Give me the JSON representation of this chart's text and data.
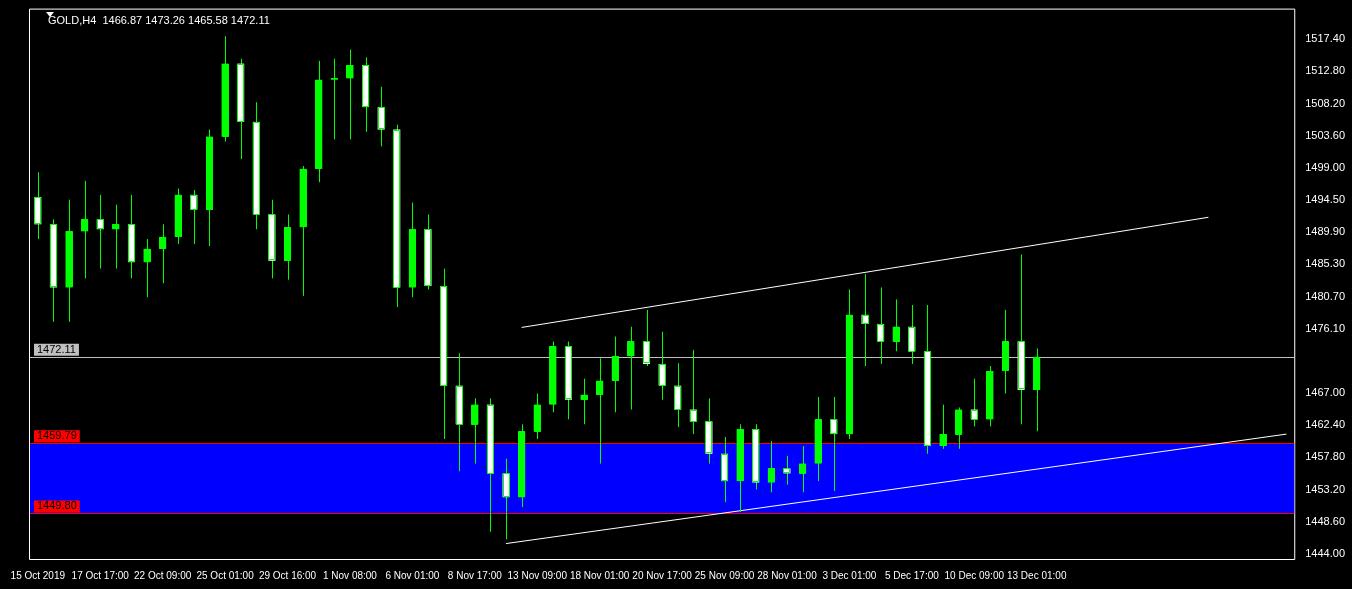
{
  "chart_data": {
    "type": "candlestick",
    "title": "GOLD,H4  1466.87 1473.26 1465.58 1472.11",
    "color": "#00ff00",
    "categories": [
      "15 Oct 2019",
      null,
      null,
      null,
      "17 Oct 17:00",
      null,
      null,
      null,
      "22 Oct 09:00",
      null,
      null,
      null,
      "25 Oct 01:00",
      null,
      null,
      null,
      "29 Oct 16:00",
      null,
      null,
      null,
      "1 Nov 08:00",
      null,
      null,
      null,
      "6 Nov 01:00",
      null,
      null,
      null,
      "8 Nov 17:00",
      null,
      null,
      null,
      "13 Nov 09:00",
      null,
      null,
      null,
      "18 Nov 01:00",
      null,
      null,
      null,
      "20 Nov 17:00",
      null,
      null,
      null,
      "25 Nov 09:00",
      null,
      null,
      null,
      "28 Nov 01:00",
      null,
      null,
      null,
      "3 Dec 01:00",
      null,
      null,
      null,
      "5 Dec 17:00",
      null,
      null,
      null,
      "10 Dec 09:00",
      null,
      null,
      null,
      "13 Dec 01:00",
      null,
      null,
      null,
      null,
      null,
      null,
      null,
      null,
      null,
      null,
      null,
      null,
      null,
      null,
      null,
      null
    ],
    "ohlc": [
      [
        1494.9,
        1498.4,
        1488.9,
        1491.0
      ],
      [
        1491.0,
        1491.7,
        1477.1,
        1482.0
      ],
      [
        1482.0,
        1494.5,
        1477.1,
        1490.0
      ],
      [
        1490.0,
        1497.2,
        1483.3,
        1491.7
      ],
      [
        1491.7,
        1495.2,
        1484.7,
        1490.3
      ],
      [
        1490.3,
        1493.8,
        1484.7,
        1491.0
      ],
      [
        1491.0,
        1495.2,
        1483.3,
        1485.6
      ],
      [
        1485.6,
        1488.9,
        1480.6,
        1487.5
      ],
      [
        1487.5,
        1491.0,
        1482.6,
        1489.2
      ],
      [
        1489.2,
        1496.1,
        1488.2,
        1495.2
      ],
      [
        1495.2,
        1495.9,
        1488.2,
        1493.1
      ],
      [
        1493.1,
        1504.5,
        1487.9,
        1503.5
      ],
      [
        1503.5,
        1517.8,
        1502.8,
        1513.9
      ],
      [
        1513.9,
        1514.6,
        1500.3,
        1505.6
      ],
      [
        1505.6,
        1508.4,
        1490.3,
        1492.4
      ],
      [
        1492.4,
        1494.5,
        1483.3,
        1485.8
      ],
      [
        1485.8,
        1492.4,
        1483.1,
        1490.6
      ],
      [
        1490.6,
        1499.3,
        1480.8,
        1498.9
      ],
      [
        1498.9,
        1514.3,
        1497.0,
        1511.6
      ],
      [
        1511.6,
        1514.6,
        1503.1,
        1511.8
      ],
      [
        1511.8,
        1515.9,
        1503.1,
        1513.7
      ],
      [
        1513.7,
        1514.8,
        1504.2,
        1507.7
      ],
      [
        1507.7,
        1510.6,
        1502.1,
        1504.5
      ],
      [
        1504.5,
        1505.2,
        1479.2,
        1482.0
      ],
      [
        1482.0,
        1494.1,
        1480.6,
        1490.3
      ],
      [
        1490.3,
        1492.4,
        1481.7,
        1482.2
      ],
      [
        1482.2,
        1484.7,
        1460.4,
        1468.0
      ],
      [
        1468.0,
        1472.6,
        1455.8,
        1462.5
      ],
      [
        1462.5,
        1466.2,
        1456.9,
        1465.3
      ],
      [
        1465.3,
        1466.2,
        1447.2,
        1455.5
      ],
      [
        1455.5,
        1457.6,
        1446.1,
        1452.1
      ],
      [
        1452.1,
        1462.5,
        1450.7,
        1461.5
      ],
      [
        1461.5,
        1466.9,
        1460.4,
        1465.3
      ],
      [
        1465.3,
        1474.3,
        1464.2,
        1473.6
      ],
      [
        1473.6,
        1474.3,
        1463.2,
        1466.0
      ],
      [
        1466.0,
        1469.0,
        1462.5,
        1466.7
      ],
      [
        1466.7,
        1471.9,
        1456.9,
        1468.7
      ],
      [
        1468.7,
        1475.0,
        1464.2,
        1472.2
      ],
      [
        1472.2,
        1476.4,
        1464.6,
        1474.3
      ],
      [
        1474.3,
        1478.8,
        1470.8,
        1471.1
      ],
      [
        1471.1,
        1475.7,
        1466.0,
        1468.0
      ],
      [
        1468.0,
        1471.2,
        1462.1,
        1464.6
      ],
      [
        1464.6,
        1473.1,
        1461.1,
        1462.9
      ],
      [
        1462.9,
        1466.2,
        1456.9,
        1458.3
      ],
      [
        1458.3,
        1460.7,
        1451.4,
        1454.4
      ],
      [
        1454.4,
        1462.5,
        1450.0,
        1461.8
      ],
      [
        1461.8,
        1462.5,
        1453.2,
        1454.2
      ],
      [
        1454.2,
        1460.1,
        1452.8,
        1456.2
      ],
      [
        1456.2,
        1458.0,
        1453.9,
        1455.5
      ],
      [
        1455.5,
        1459.4,
        1452.8,
        1456.9
      ],
      [
        1456.9,
        1466.4,
        1454.4,
        1463.2
      ],
      [
        1463.2,
        1466.4,
        1453.0,
        1461.1
      ],
      [
        1461.1,
        1481.7,
        1460.4,
        1478.1
      ],
      [
        1478.1,
        1483.9,
        1470.8,
        1476.8
      ],
      [
        1476.8,
        1482.0,
        1471.1,
        1474.3
      ],
      [
        1474.3,
        1480.3,
        1472.9,
        1476.4
      ],
      [
        1476.4,
        1479.5,
        1471.1,
        1472.9
      ],
      [
        1472.9,
        1479.5,
        1458.3,
        1459.4
      ],
      [
        1459.4,
        1465.3,
        1459.0,
        1461.1
      ],
      [
        1461.1,
        1464.9,
        1459.0,
        1464.6
      ],
      [
        1464.6,
        1469.0,
        1462.2,
        1463.2
      ],
      [
        1463.2,
        1470.8,
        1462.2,
        1470.1
      ],
      [
        1470.1,
        1478.8,
        1466.9,
        1474.3
      ],
      [
        1474.3,
        1486.7,
        1462.5,
        1467.4
      ],
      [
        1467.4,
        1473.3,
        1461.5,
        1472.11
      ],
      null,
      null,
      null,
      null,
      null,
      null,
      null,
      null,
      null,
      null,
      null,
      null,
      null,
      null,
      null,
      null
    ],
    "colors": [
      "#ffffff",
      "#ffffff",
      "#00ff00",
      "#00ff00",
      "#ffffff",
      "#00ff00",
      "#ffffff",
      "#00ff00",
      "#00ff00",
      "#00ff00",
      "#ffffff",
      "#00ff00",
      "#00ff00",
      "#ffffff",
      "#ffffff",
      "#ffffff",
      "#00ff00",
      "#00ff00",
      "#00ff00",
      "#00ff00",
      "#00ff00",
      "#ffffff",
      "#ffffff",
      "#ffffff",
      "#00ff00",
      "#ffffff",
      "#ffffff",
      "#ffffff",
      "#00ff00",
      "#ffffff",
      "#ffffff",
      "#00ff00",
      "#00ff00",
      "#00ff00",
      "#ffffff",
      "#00ff00",
      "#00ff00",
      "#00ff00",
      "#00ff00",
      "#ffffff",
      "#ffffff",
      "#ffffff",
      "#ffffff",
      "#ffffff",
      "#ffffff",
      "#00ff00",
      "#ffffff",
      "#00ff00",
      "#ffffff",
      "#00ff00",
      "#00ff00",
      "#ffffff",
      "#00ff00",
      "#ffffff",
      "#ffffff",
      "#00ff00",
      "#ffffff",
      "#ffffff",
      "#00ff00",
      "#00ff00",
      "#ffffff",
      "#00ff00",
      "#00ff00",
      "#ffffff",
      "#00ff00",
      null,
      null,
      null,
      null,
      null,
      null,
      null,
      null,
      null,
      null,
      null,
      null,
      null,
      null,
      null,
      null
    ],
    "series": [
      {
        "type": "line",
        "color": "#ffffff",
        "values": [
          null,
          null,
          null,
          null,
          null,
          null,
          null,
          null,
          null,
          null,
          null,
          null,
          null,
          null,
          null,
          null,
          null,
          null,
          null,
          null,
          null,
          null,
          null,
          null,
          null,
          null,
          null,
          null,
          null,
          null,
          null,
          1476.3,
          null,
          null,
          null,
          null,
          null,
          null,
          null,
          null,
          null,
          null,
          null,
          null,
          null,
          null,
          null,
          null,
          null,
          null,
          null,
          null,
          null,
          null,
          null,
          null,
          null,
          null,
          null,
          null,
          null,
          null,
          null,
          null,
          null,
          null,
          null,
          null,
          null,
          null,
          null,
          null,
          null,
          null,
          null,
          1492.0,
          null,
          null,
          null,
          null,
          null
        ]
      },
      {
        "type": "line",
        "color": "#ffffff",
        "values": [
          null,
          null,
          null,
          null,
          null,
          null,
          null,
          null,
          null,
          null,
          null,
          null,
          null,
          null,
          null,
          null,
          null,
          null,
          null,
          null,
          null,
          null,
          null,
          null,
          null,
          null,
          null,
          null,
          null,
          null,
          1445.5,
          null,
          null,
          null,
          null,
          null,
          null,
          null,
          null,
          null,
          null,
          null,
          null,
          null,
          null,
          null,
          null,
          null,
          null,
          null,
          null,
          null,
          null,
          null,
          null,
          null,
          null,
          null,
          null,
          null,
          null,
          null,
          null,
          null,
          null,
          null,
          null,
          null,
          null,
          null,
          null,
          null,
          null,
          null,
          null,
          null,
          null,
          null,
          null,
          null,
          1461.1
        ]
      }
    ],
    "ylim": [
      1443.3,
      1521.6
    ],
    "yticks": [
      {
        "value": 1444.0,
        "label": "1444.00"
      },
      {
        "value": 1448.6,
        "label": "1448.60"
      },
      {
        "value": 1453.2,
        "label": "1453.20"
      },
      {
        "value": 1457.8,
        "label": "1457.80"
      },
      {
        "value": 1462.4,
        "label": "1462.40"
      },
      {
        "value": 1467.0,
        "label": "1467.00"
      },
      {
        "value": 1476.1,
        "label": "1476.10"
      },
      {
        "value": 1480.7,
        "label": "1480.70"
      },
      {
        "value": 1485.3,
        "label": "1485.30"
      },
      {
        "value": 1489.9,
        "label": "1489.90"
      },
      {
        "value": 1494.5,
        "label": "1494.50"
      },
      {
        "value": 1499.0,
        "label": "1499.00"
      },
      {
        "value": 1503.6,
        "label": "1503.60"
      },
      {
        "value": 1508.2,
        "label": "1508.20"
      },
      {
        "value": 1512.8,
        "label": "1512.80"
      },
      {
        "value": 1517.4,
        "label": "1517.40"
      }
    ],
    "ref_lines": [
      {
        "axis": "y",
        "value": 1472.11,
        "label": "1472.11",
        "color": "#c0c0c0"
      },
      {
        "axis": "y",
        "value": 1459.79,
        "label": "1459.79",
        "color": "#ff0000"
      },
      {
        "axis": "y",
        "value": 1449.8,
        "label": "1449.80",
        "color": "#ff0000"
      }
    ],
    "bands": [
      {
        "axis": "y",
        "from": 1449.8,
        "to": 1459.79,
        "color": "#0000ff"
      }
    ],
    "grid": false,
    "legend": false
  }
}
